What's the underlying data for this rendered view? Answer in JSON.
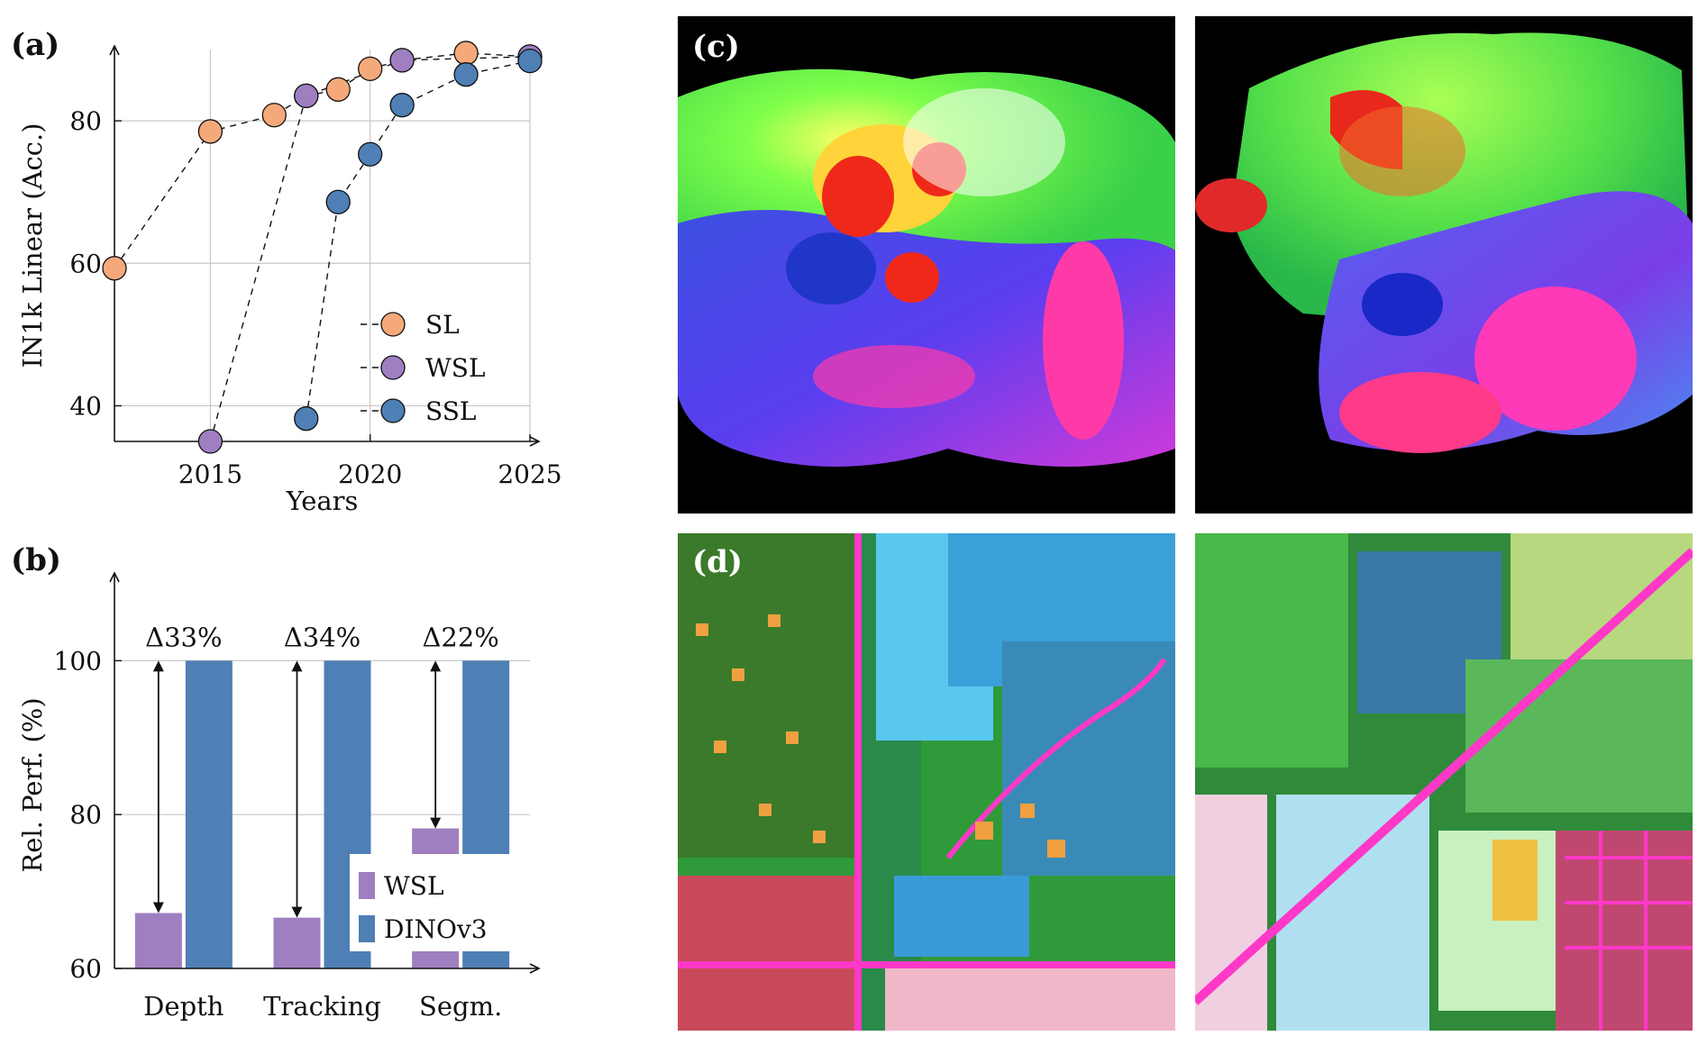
{
  "chart_data": [
    {
      "panel": "(a)",
      "type": "scatter",
      "xlabel": "Years",
      "ylabel": "IN1k Linear (Acc.)",
      "xlim": [
        2012,
        2025
      ],
      "ylim": [
        35,
        90
      ],
      "xticks": [
        2015,
        2020,
        2025
      ],
      "yticks": [
        40,
        60,
        80
      ],
      "grid": true,
      "legend_position": "lower-right",
      "series": [
        {
          "name": "SL",
          "color": "#f5a97a",
          "x": [
            2012,
            2015,
            2017,
            2018,
            2019,
            2020,
            2021,
            2023,
            2025
          ],
          "y": [
            59.3,
            78.5,
            80.8,
            83.5,
            84.4,
            87.3,
            88.5,
            89.5,
            89.0
          ]
        },
        {
          "name": "WSL",
          "color": "#9f7fc0",
          "x": [
            2015,
            2018,
            2021,
            2025
          ],
          "y": [
            35.0,
            83.5,
            88.5,
            89.0
          ]
        },
        {
          "name": "SSL",
          "color": "#4e7fb5",
          "x": [
            2018,
            2019,
            2020,
            2021,
            2023,
            2025
          ],
          "y": [
            38.2,
            68.6,
            75.3,
            82.2,
            86.5,
            88.4
          ]
        }
      ]
    },
    {
      "panel": "(b)",
      "type": "bar",
      "xlabel": "",
      "ylabel": "Rel. Perf. (%)",
      "ylim": [
        60,
        110
      ],
      "yticks": [
        60,
        80,
        100
      ],
      "grid": true,
      "legend_position": "lower-right",
      "categories": [
        "Depth",
        "Tracking",
        "Segm."
      ],
      "series": [
        {
          "name": "WSL",
          "color": "#9f7fc0",
          "values": [
            67.2,
            66.6,
            78.2
          ]
        },
        {
          "name": "DINOv3",
          "color": "#4e7fb5",
          "values": [
            100,
            100,
            100
          ]
        }
      ],
      "annotations": [
        "Δ33%",
        "Δ34%",
        "Δ22%"
      ]
    }
  ],
  "panels": {
    "a_label": "(a)",
    "b_label": "(b)",
    "c_label": "(c)",
    "d_label": "(d)"
  }
}
